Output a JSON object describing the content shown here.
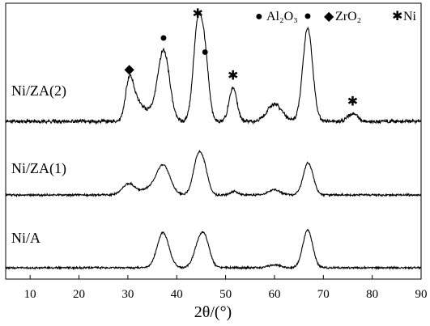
{
  "chart_data": {
    "type": "line",
    "xlabel": "2θ/(°)",
    "xlim": [
      5,
      90
    ],
    "xticks": [
      10,
      20,
      30,
      40,
      50,
      60,
      70,
      80,
      90
    ],
    "legend": {
      "placement": "top-right",
      "items": [
        {
          "symbol": "●",
          "label": "Al₂O₃"
        },
        {
          "symbol": "◆",
          "label": "ZrO₂"
        },
        {
          "symbol": "✱",
          "label": "Ni"
        }
      ]
    },
    "series": [
      {
        "name": "Ni/ZA(2)",
        "offset": 2,
        "baseline": 0.0,
        "peaks": [
          {
            "x": 30.3,
            "h": 0.42,
            "w": 0.8
          },
          {
            "x": 31.8,
            "h": 0.18,
            "w": 1.0
          },
          {
            "x": 34.0,
            "h": 0.1,
            "w": 1.2
          },
          {
            "x": 37.3,
            "h": 0.75,
            "w": 1.2
          },
          {
            "x": 44.3,
            "h": 1.0,
            "w": 0.9
          },
          {
            "x": 45.8,
            "h": 0.6,
            "w": 0.8
          },
          {
            "x": 51.5,
            "h": 0.35,
            "w": 0.8
          },
          {
            "x": 60.0,
            "h": 0.18,
            "w": 1.5
          },
          {
            "x": 66.8,
            "h": 0.98,
            "w": 1.0
          },
          {
            "x": 76.0,
            "h": 0.08,
            "w": 1.0
          }
        ],
        "markers": [
          {
            "x": 30.3,
            "symbol": "◆"
          },
          {
            "x": 37.3,
            "symbol": "●"
          },
          {
            "x": 44.3,
            "symbol": "✱"
          },
          {
            "x": 45.8,
            "symbol": "●"
          },
          {
            "x": 51.5,
            "symbol": "✱"
          },
          {
            "x": 66.8,
            "symbol": "●"
          },
          {
            "x": 76.0,
            "symbol": "✱"
          }
        ]
      },
      {
        "name": "Ni/ZA(1)",
        "offset": 1,
        "baseline": 0.0,
        "peaks": [
          {
            "x": 30.2,
            "h": 0.22,
            "w": 1.3
          },
          {
            "x": 34.0,
            "h": 0.1,
            "w": 1.3
          },
          {
            "x": 37.2,
            "h": 0.58,
            "w": 1.4
          },
          {
            "x": 44.4,
            "h": 0.74,
            "w": 1.0
          },
          {
            "x": 45.8,
            "h": 0.32,
            "w": 0.8
          },
          {
            "x": 51.8,
            "h": 0.07,
            "w": 0.8
          },
          {
            "x": 60.0,
            "h": 0.1,
            "w": 1.2
          },
          {
            "x": 66.9,
            "h": 0.62,
            "w": 1.0
          }
        ],
        "markers": []
      },
      {
        "name": "Ni/A",
        "offset": 0,
        "baseline": 0.0,
        "peaks": [
          {
            "x": 37.2,
            "h": 0.7,
            "w": 1.2
          },
          {
            "x": 44.4,
            "h": 0.38,
            "w": 1.0
          },
          {
            "x": 45.8,
            "h": 0.52,
            "w": 1.0
          },
          {
            "x": 60.0,
            "h": 0.06,
            "w": 1.2
          },
          {
            "x": 66.8,
            "h": 0.75,
            "w": 1.0
          }
        ],
        "markers": []
      }
    ]
  }
}
